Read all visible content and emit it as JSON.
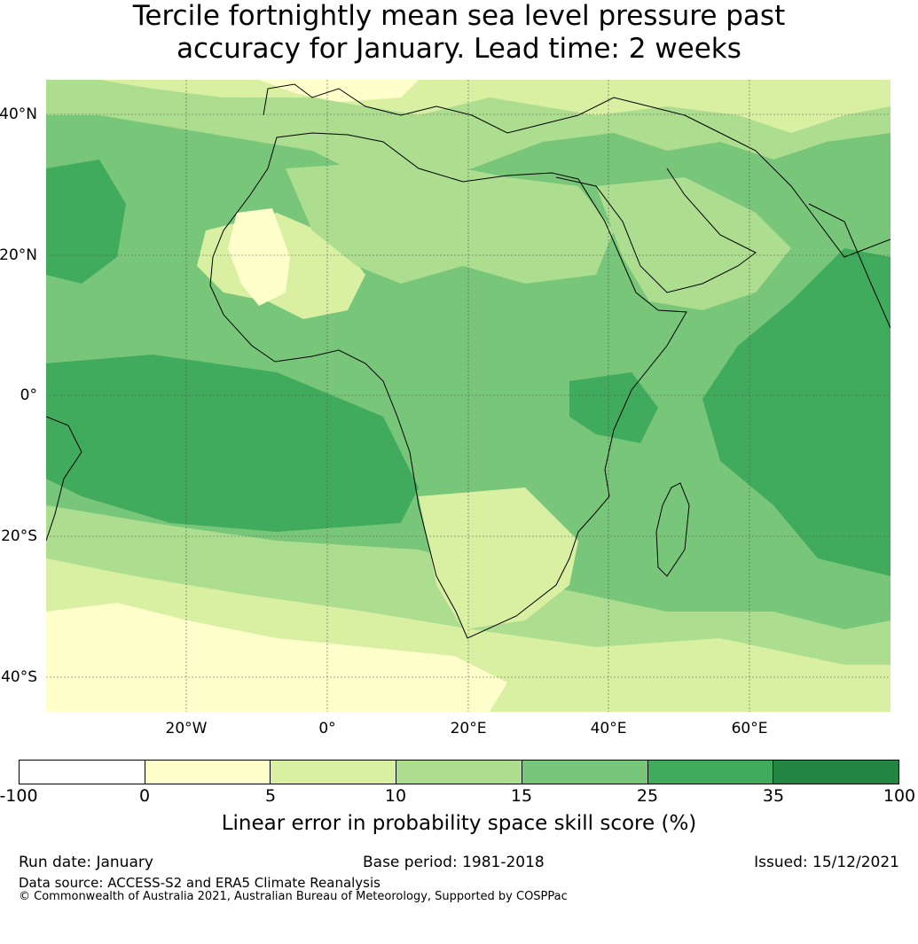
{
  "title": {
    "line1": "Tercile fortnightly mean sea level pressure past",
    "line2": "accuracy for January. Lead time: 2 weeks"
  },
  "map": {
    "lat_labels": [
      "40°N",
      "20°N",
      "0°",
      "20°S",
      "40°S"
    ],
    "lon_labels": [
      "20°W",
      "0°",
      "20°E",
      "40°E",
      "60°E"
    ],
    "colors": {
      "ocean_base": "#78c679",
      "land_base": "#a9dc8e",
      "band_lowest": "#ffffcc",
      "band_low": "#d9f0a3",
      "band_mid": "#addd8e",
      "band_high": "#78c679",
      "band_higher": "#41ab5d",
      "band_top": "#238443",
      "gridline": "#555555",
      "coast": "#000000"
    }
  },
  "colorbar": {
    "colors": [
      "#ffffff",
      "#ffffcc",
      "#d9f0a3",
      "#addd8e",
      "#78c679",
      "#41ab5d",
      "#238443"
    ],
    "ticks": [
      "-100",
      "0",
      "5",
      "10",
      "15",
      "25",
      "35",
      "100"
    ],
    "label": "Linear error in probability space skill score (%)"
  },
  "footer": {
    "run_date": "Run date: January",
    "base_period": "Base period: 1981-2018",
    "issued": "Issued: 15/12/2021",
    "data_source": "Data source: ACCESS-S2 and ERA5 Climate Reanalysis",
    "copyright": "© Commonwealth of Australia 2021, Australian Bureau of Meteorology, Supported by COSPPac"
  }
}
